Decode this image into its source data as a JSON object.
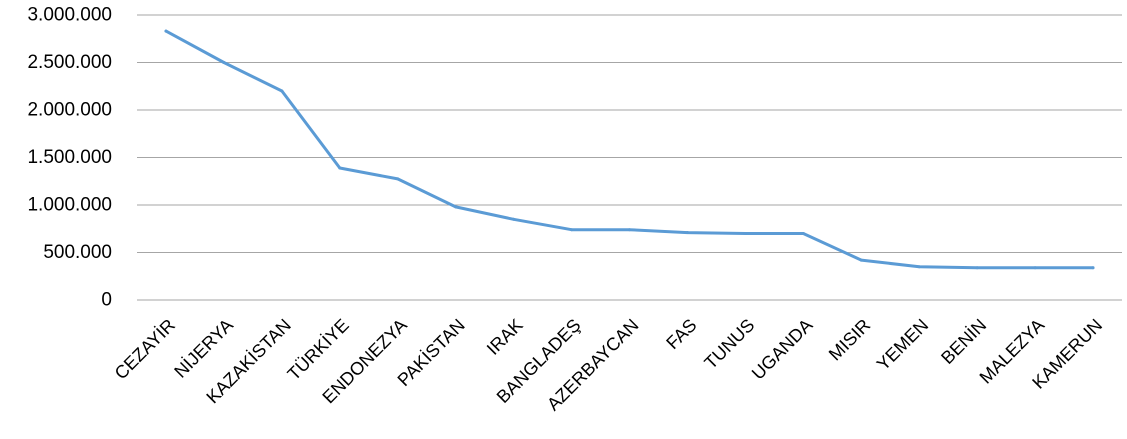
{
  "chart_data": {
    "type": "line",
    "title": "",
    "xlabel": "",
    "ylabel": "",
    "categories": [
      "CEZAYİR",
      "NİJERYA",
      "KAZAKİSTAN",
      "TÜRKİYE",
      "ENDONEZYA",
      "PAKİSTAN",
      "IRAK",
      "BANGLADEŞ",
      "AZERBAYCAN",
      "FAS",
      "TUNUS",
      "UGANDA",
      "MISIR",
      "YEMEN",
      "BENİN",
      "MALEZYA",
      "KAMERUN"
    ],
    "series": [
      {
        "values": [
          2830000,
          2500000,
          2200000,
          1390000,
          1275000,
          980000,
          850000,
          740000,
          740000,
          710000,
          700000,
          700000,
          420000,
          350000,
          340000,
          340000,
          340000
        ]
      }
    ],
    "ylim": [
      0,
      3000000
    ],
    "yticks": [
      0,
      500000,
      1000000,
      1500000,
      2000000,
      2500000,
      3000000
    ],
    "ytick_labels": [
      "0",
      "500.000",
      "1.000.000",
      "1.500.000",
      "2.000.000",
      "2.500.000",
      "3.000.000"
    ],
    "grid": true,
    "legend": "none",
    "colors": {
      "line": "#5b9bd5",
      "grid": "#a6a6a6",
      "text": "#000000"
    }
  }
}
